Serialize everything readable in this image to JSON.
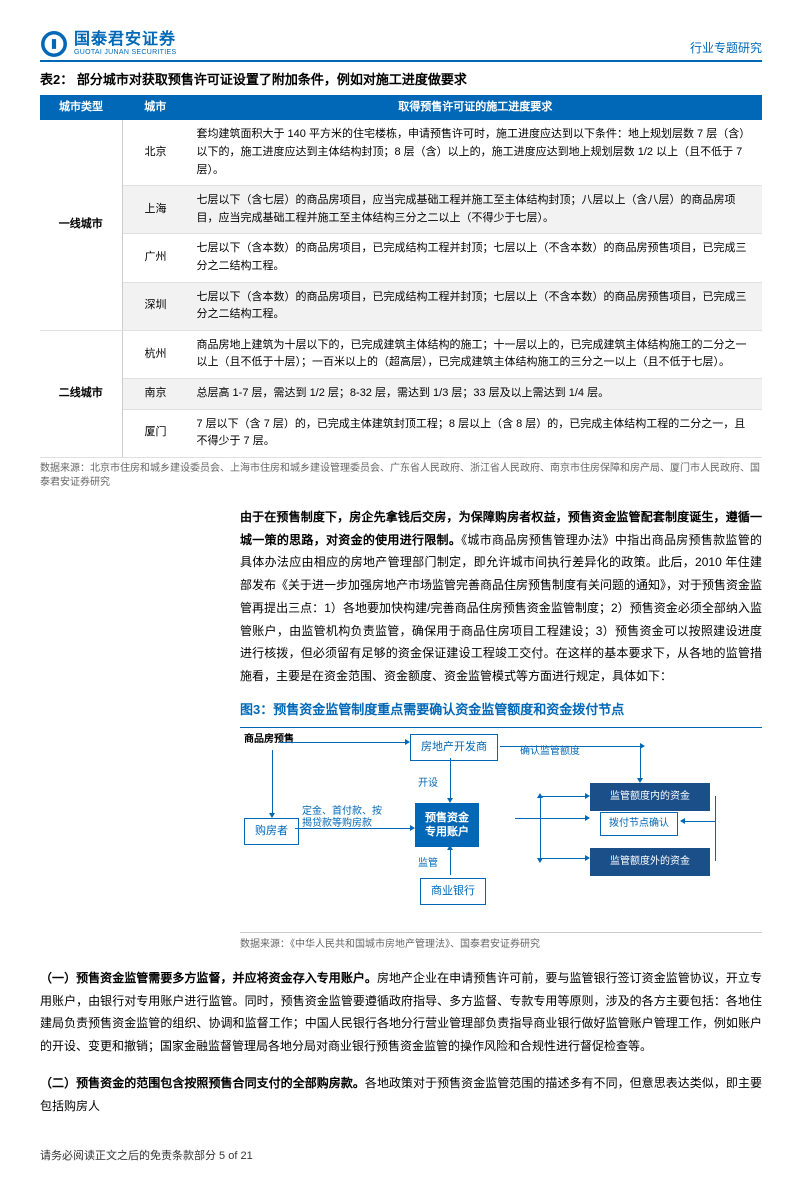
{
  "header": {
    "brand_cn": "国泰君安证券",
    "brand_en": "GUOTAI JUNAN SECURITIES",
    "category": "行业专题研究"
  },
  "table2": {
    "title": "表2：  部分城市对获取预售许可证设置了附加条件，例如对施工进度做要求",
    "cols": [
      "城市类型",
      "城市",
      "取得预售许可证的施工进度要求"
    ],
    "groups": [
      {
        "cat": "一线城市",
        "rows": [
          {
            "city": "北京",
            "req": "套均建筑面积大于 140 平方米的住宅楼栋，申请预售许可时，施工进度应达到以下条件：地上规划层数 7 层（含）以下的，施工进度应达到主体结构封顶；8 层（含）以上的，施工进度应达到地上规划层数 1/2 以上（且不低于 7 层）。"
          },
          {
            "city": "上海",
            "req": "七层以下（含七层）的商品房项目，应当完成基础工程并施工至主体结构封顶；八层以上（含八层）的商品房项目，应当完成基础工程并施工至主体结构三分之二以上（不得少于七层）。"
          },
          {
            "city": "广州",
            "req": "七层以下（含本数）的商品房项目，已完成结构工程并封顶；七层以上（不含本数）的商品房预售项目，已完成三分之二结构工程。"
          },
          {
            "city": "深圳",
            "req": "七层以下（含本数）的商品房项目，已完成结构工程并封顶；七层以上（不含本数）的商品房预售项目，已完成三分之二结构工程。"
          }
        ]
      },
      {
        "cat": "二线城市",
        "rows": [
          {
            "city": "杭州",
            "req": "商品房地上建筑为十层以下的，已完成建筑主体结构的施工；十一层以上的，已完成建筑主体结构施工的二分之一以上（且不低于十层）；一百米以上的（超高层），已完成建筑主体结构施工的三分之一以上（且不低于七层）。"
          },
          {
            "city": "南京",
            "req": "总层高 1-7 层，需达到 1/2 层；8-32 层，需达到 1/3 层；33 层及以上需达到 1/4 层。"
          },
          {
            "city": "厦门",
            "req": "7 层以下（含 7 层）的，已完成主体建筑封顶工程；8 层以上（含 8 层）的，已完成主体结构工程的二分之一，且不得少于 7 层。"
          }
        ]
      }
    ],
    "source": "数据来源：北京市住房和城乡建设委员会、上海市住房和城乡建设管理委员会、广东省人民政府、浙江省人民政府、南京市住房保障和房产局、厦门市人民政府、国泰君安证券研究"
  },
  "para1": {
    "bold": "由于在预售制度下，房企先拿钱后交房，为保障购房者权益，预售资金监管配套制度诞生，遵循一城一策的思路，对资金的使用进行限制。",
    "rest": "《城市商品房预售管理办法》中指出商品房预售款监管的具体办法应由相应的房地产管理部门制定，即允许城市间执行差异化的政策。此后，2010 年住建部发布《关于进一步加强房地产市场监管完善商品住房预售制度有关问题的通知》，对于预售资金监管再提出三点：1）各地要加快构建/完善商品住房预售资金监管制度；2）预售资金必须全部纳入监管账户，由监管机构负责监管，确保用于商品住房项目工程建设；3）预售资金可以按照建设进度进行核拨，但必须留有足够的资金保证建设工程竣工交付。在这样的基本要求下，从各地的监管措施看，主要是在资金范围、资金额度、资金监管模式等方面进行规定，具体如下："
  },
  "fig3": {
    "title": "图3：预售资金监管制度重点需要确认资金监管额度和资金拨付节点",
    "nodes": {
      "presale": "商品房预售",
      "developer": "房地产开发商",
      "buyer": "购房者",
      "account": "预售资金\n专用账户",
      "bank": "商业银行",
      "in_limit": "监管额度内的资金",
      "out_limit": "监管额度外的资金",
      "confirm_pay": "拨付节点确认"
    },
    "labels": {
      "open": "开设",
      "confirm": "确认监管额度",
      "payment": "定金、首付款、按\n揭贷款等购房款",
      "supervise": "监管"
    },
    "source": "数据来源：《中华人民共和国城市房地产管理法》、国泰君安证券研究"
  },
  "sec1": {
    "bold": "（一）预售资金监管需要多方监督，并应将资金存入专用账户。",
    "rest": "房地产企业在申请预售许可前，要与监管银行签订资金监管协议，开立专用账户，由银行对专用账户进行监管。同时，预售资金监管要遵循政府指导、多方监督、专款专用等原则，涉及的各方主要包括：各地住建局负责预售资金监管的组织、协调和监督工作；中国人民银行各地分行营业管理部负责指导商业银行做好监管账户管理工作，例如账户的开设、变更和撤销；国家金融监督管理局各地分局对商业银行预售资金监管的操作风险和合规性进行督促检查等。"
  },
  "sec2": {
    "bold": "（二）预售资金的范围包含按照预售合同支付的全部购房款。",
    "rest": "各地政策对于预售资金监管范围的描述多有不同，但意思表达类似，即主要包括购房人"
  },
  "footer": "请务必阅读正文之后的免责条款部分 5 of 21"
}
